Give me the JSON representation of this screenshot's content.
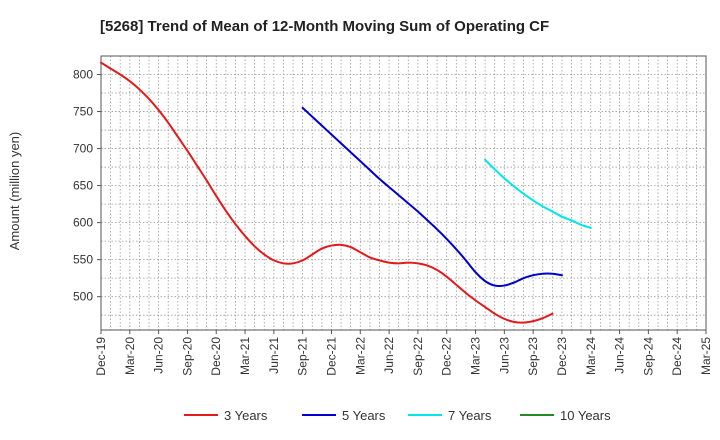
{
  "chart_data": {
    "type": "line",
    "title": "[5268]  Trend of Mean of 12-Month Moving Sum of Operating CF",
    "xlabel": "",
    "ylabel": "Amount (million yen)",
    "ylim": [
      455,
      825
    ],
    "yticks": [
      500,
      550,
      600,
      650,
      700,
      750,
      800
    ],
    "grid": true,
    "legend_position": "bottom",
    "x_ticks": [
      "Dec-19",
      "Mar-20",
      "Jun-20",
      "Sep-20",
      "Dec-20",
      "Mar-21",
      "Jun-21",
      "Sep-21",
      "Dec-21",
      "Mar-22",
      "Jun-22",
      "Sep-22",
      "Dec-22",
      "Mar-23",
      "Jun-23",
      "Sep-23",
      "Dec-23",
      "Mar-24",
      "Jun-24",
      "Sep-24",
      "Dec-24",
      "Mar-25"
    ],
    "x_start": "Dec-19",
    "series": [
      {
        "name": "3 Years",
        "color": "#e31a1c",
        "start_index": 0,
        "values": [
          816,
          808,
          800,
          791,
          780,
          767,
          752,
          735,
          716,
          697,
          677,
          657,
          636,
          616,
          598,
          582,
          568,
          557,
          549,
          545,
          545,
          549,
          557,
          565,
          569,
          570,
          567,
          560,
          553,
          549,
          546,
          545,
          546,
          545,
          542,
          536,
          527,
          516,
          505,
          495,
          486,
          477,
          470,
          466,
          465,
          467,
          471,
          477
        ]
      },
      {
        "name": "5 Years",
        "color": "#0000cc",
        "start_index": 21,
        "values": [
          755,
          743,
          731,
          719,
          707,
          695,
          683,
          671,
          659,
          648,
          637,
          626,
          615,
          603,
          591,
          578,
          564,
          549,
          533,
          521,
          515,
          515,
          519,
          525,
          529,
          531,
          531,
          529
        ]
      },
      {
        "name": "7 Years",
        "color": "#00e5ee",
        "start_index": 40,
        "values": [
          685,
          672,
          660,
          649,
          639,
          630,
          622,
          615,
          608,
          603,
          597,
          593
        ]
      },
      {
        "name": "10 Years",
        "color": "#228b22",
        "start_index": 0,
        "values": []
      }
    ]
  }
}
